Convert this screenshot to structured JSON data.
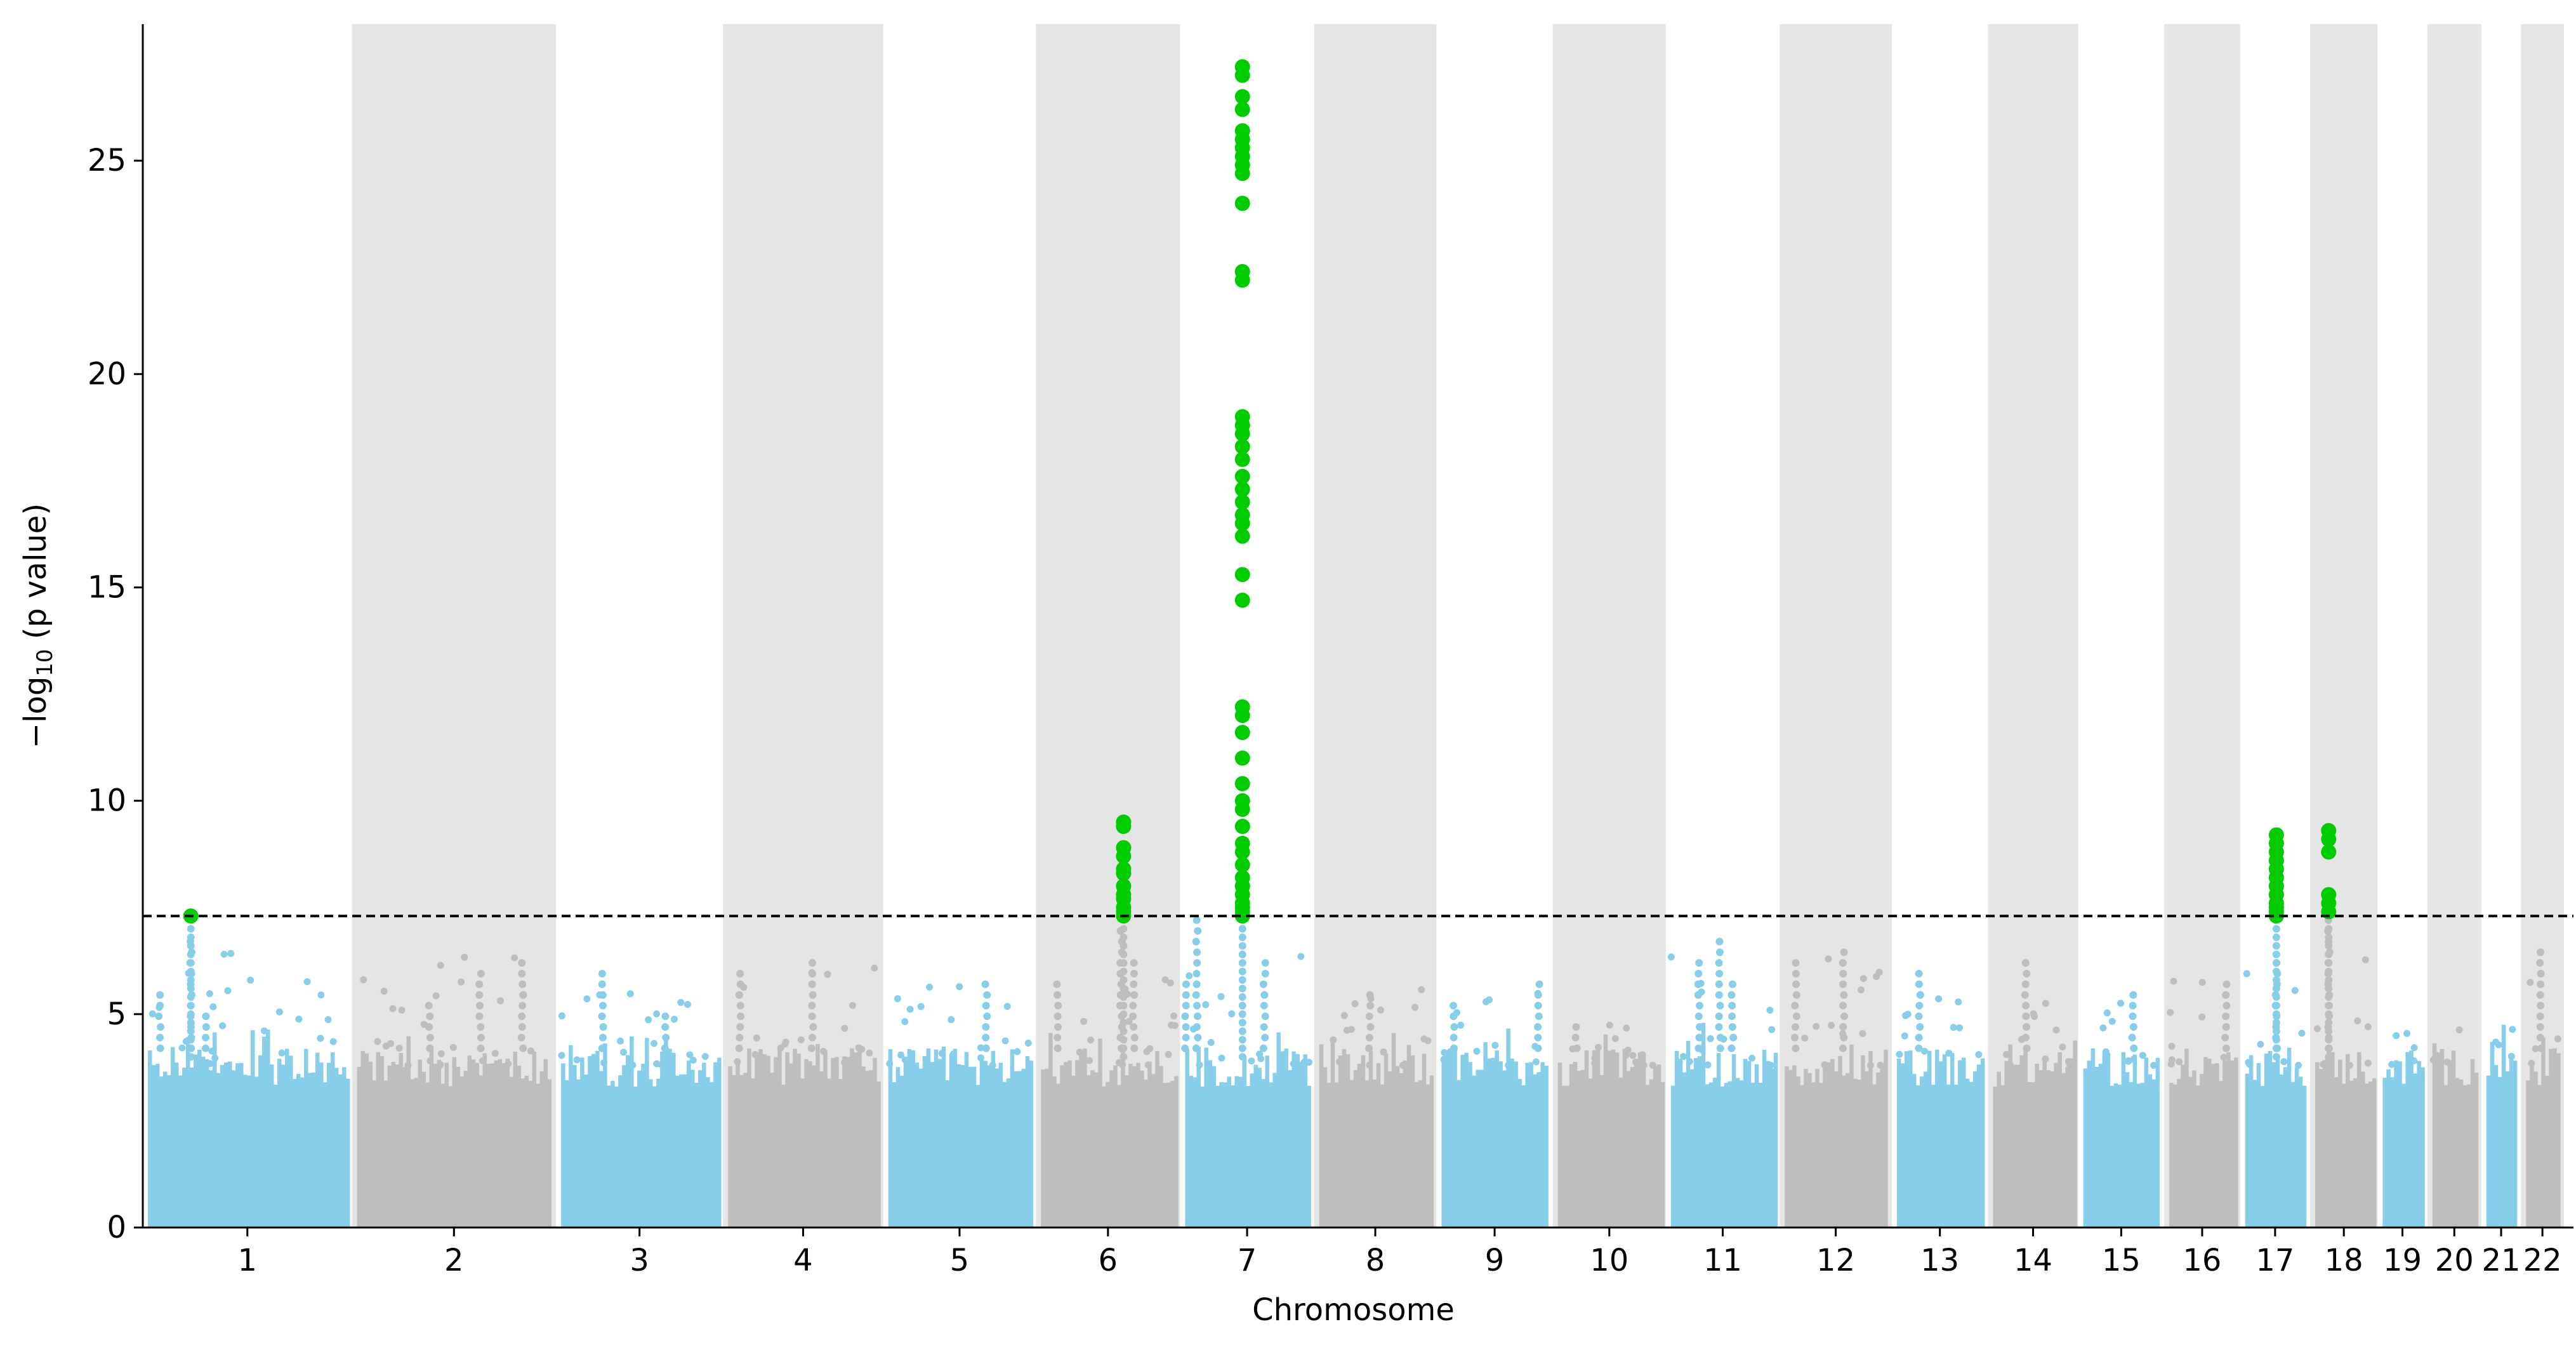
{
  "chart_data": {
    "type": "scatter",
    "subtype": "manhattan",
    "title": "",
    "xlabel": "Chromosome",
    "ylabel": {
      "prefix": "−log",
      "subscript": "10",
      "suffix": " (p value)"
    },
    "ylim": [
      0,
      28.2
    ],
    "yticks": [
      0,
      5,
      10,
      15,
      20,
      25
    ],
    "grid": false,
    "threshold": {
      "value": 7.3,
      "style": "dashed",
      "color": "#000000"
    },
    "colors": {
      "odd_chromosome": "#87CEEB",
      "even_chromosome": "#BEBEBE",
      "even_band": "#E5E5E5",
      "significant": "#00CC00"
    },
    "chromosomes": [
      {
        "label": "1",
        "start": 0,
        "end": 248,
        "max": 7.3
      },
      {
        "label": "2",
        "start": 248,
        "end": 490,
        "max": 6.4
      },
      {
        "label": "3",
        "start": 490,
        "end": 688,
        "max": 6.0
      },
      {
        "label": "4",
        "start": 688,
        "end": 878,
        "max": 6.3
      },
      {
        "label": "5",
        "start": 878,
        "end": 1059,
        "max": 5.7
      },
      {
        "label": "6",
        "start": 1059,
        "end": 1230,
        "max": 9.5
      },
      {
        "label": "7",
        "start": 1230,
        "end": 1389,
        "max": 27.2
      },
      {
        "label": "8",
        "start": 1389,
        "end": 1534,
        "max": 5.6
      },
      {
        "label": "9",
        "start": 1534,
        "end": 1672,
        "max": 5.8
      },
      {
        "label": "10",
        "start": 1672,
        "end": 1806,
        "max": 4.9
      },
      {
        "label": "11",
        "start": 1806,
        "end": 1941,
        "max": 6.8
      },
      {
        "label": "12",
        "start": 1941,
        "end": 2074,
        "max": 6.5
      },
      {
        "label": "13",
        "start": 2074,
        "end": 2188,
        "max": 6.0
      },
      {
        "label": "14",
        "start": 2188,
        "end": 2295,
        "max": 6.3
      },
      {
        "label": "15",
        "start": 2295,
        "end": 2397,
        "max": 5.5
      },
      {
        "label": "16",
        "start": 2397,
        "end": 2487,
        "max": 5.9
      },
      {
        "label": "17",
        "start": 2487,
        "end": 2570,
        "max": 9.2
      },
      {
        "label": "18",
        "start": 2570,
        "end": 2650,
        "max": 9.3
      },
      {
        "label": "19",
        "start": 2650,
        "end": 2709,
        "max": 4.9
      },
      {
        "label": "20",
        "start": 2709,
        "end": 2773,
        "max": 4.8
      },
      {
        "label": "21",
        "start": 2773,
        "end": 2820,
        "max": 5.0
      },
      {
        "label": "22",
        "start": 2820,
        "end": 2871,
        "max": 6.5
      }
    ],
    "significant_points": [
      {
        "chromosome": "1",
        "pos": 57,
        "values": [
          7.3
        ]
      },
      {
        "chromosome": "6",
        "pos": 1163,
        "values": [
          9.5,
          9.4,
          8.9,
          8.7,
          8.4,
          8.3,
          8.0,
          7.8,
          7.7,
          7.5,
          7.4,
          7.3
        ]
      },
      {
        "chromosome": "7",
        "pos": 1304,
        "values": [
          27.2,
          27.0,
          26.5,
          26.2,
          25.7,
          25.5,
          25.3,
          25.1,
          24.9,
          24.7,
          24.0,
          22.4,
          22.2,
          19.0,
          18.8,
          18.6,
          18.3,
          18.0,
          17.6,
          17.3,
          17.0,
          16.7,
          16.5,
          16.2,
          15.3,
          14.7,
          12.2,
          12.0,
          11.6,
          11.0,
          10.4,
          10.0,
          9.8,
          9.4,
          9.0,
          8.8,
          8.5,
          8.2,
          8.0,
          7.8,
          7.6,
          7.5,
          7.4,
          7.3
        ]
      },
      {
        "chromosome": "17",
        "pos": 2530,
        "values": [
          9.2,
          9.0,
          8.8,
          8.6,
          8.4,
          8.2,
          8.0,
          7.8,
          7.6,
          7.5,
          7.4,
          7.3
        ]
      },
      {
        "chromosome": "18",
        "pos": 2592,
        "values": [
          9.3,
          9.1,
          8.8,
          7.8,
          7.6,
          7.4
        ]
      }
    ],
    "background_tops": [
      {
        "chromosome": "1",
        "pos": 57,
        "value": 6.8
      },
      {
        "chromosome": "1",
        "pos": 20,
        "value": 5.5
      },
      {
        "chromosome": "1",
        "pos": 75,
        "value": 5.0
      },
      {
        "chromosome": "2",
        "pos": 450,
        "value": 6.4
      },
      {
        "chromosome": "2",
        "pos": 400,
        "value": 6.1
      },
      {
        "chromosome": "2",
        "pos": 340,
        "value": 5.2
      },
      {
        "chromosome": "3",
        "pos": 545,
        "value": 6.0
      },
      {
        "chromosome": "3",
        "pos": 620,
        "value": 5.1
      },
      {
        "chromosome": "4",
        "pos": 708,
        "value": 6.0
      },
      {
        "chromosome": "4",
        "pos": 794,
        "value": 6.3
      },
      {
        "chromosome": "5",
        "pos": 1000,
        "value": 5.7
      },
      {
        "chromosome": "6",
        "pos": 1160,
        "value": 7.0
      },
      {
        "chromosome": "6",
        "pos": 1175,
        "value": 6.2
      },
      {
        "chromosome": "6",
        "pos": 1085,
        "value": 5.7
      },
      {
        "chromosome": "7",
        "pos": 1250,
        "value": 7.2
      },
      {
        "chromosome": "7",
        "pos": 1237,
        "value": 5.8
      },
      {
        "chromosome": "7",
        "pos": 1330,
        "value": 6.2
      },
      {
        "chromosome": "8",
        "pos": 1455,
        "value": 5.6
      },
      {
        "chromosome": "9",
        "pos": 1655,
        "value": 5.8
      },
      {
        "chromosome": "9",
        "pos": 1555,
        "value": 5.3
      },
      {
        "chromosome": "10",
        "pos": 1700,
        "value": 4.9
      },
      {
        "chromosome": "11",
        "pos": 1870,
        "value": 6.8
      },
      {
        "chromosome": "11",
        "pos": 1845,
        "value": 6.3
      },
      {
        "chromosome": "11",
        "pos": 1885,
        "value": 5.8
      },
      {
        "chromosome": "12",
        "pos": 1960,
        "value": 6.4
      },
      {
        "chromosome": "12",
        "pos": 2017,
        "value": 6.5
      },
      {
        "chromosome": "13",
        "pos": 2107,
        "value": 6.0
      },
      {
        "chromosome": "14",
        "pos": 2233,
        "value": 6.3
      },
      {
        "chromosome": "15",
        "pos": 2360,
        "value": 5.5
      },
      {
        "chromosome": "16",
        "pos": 2470,
        "value": 5.9
      },
      {
        "chromosome": "17",
        "pos": 2530,
        "value": 6.3
      },
      {
        "chromosome": "18",
        "pos": 2592,
        "value": 7.2
      },
      {
        "chromosome": "22",
        "pos": 2843,
        "value": 6.5
      }
    ]
  }
}
